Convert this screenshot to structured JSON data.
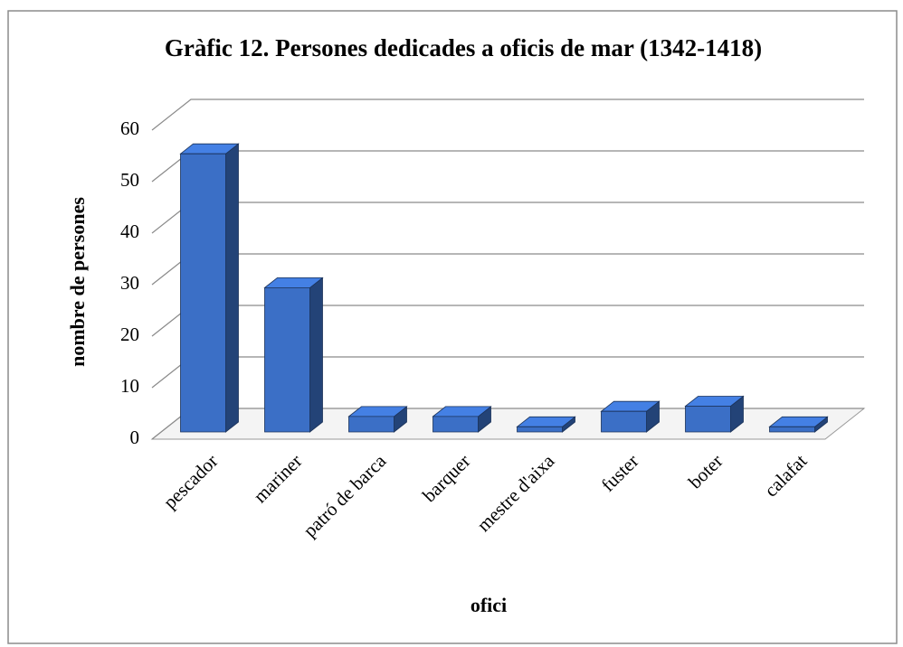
{
  "chart_data": {
    "type": "bar3d",
    "title": "Gràfic 12. Persones dedicades a oficis de mar (1342-1418)",
    "x_label": "ofici",
    "y_label": "nombre de persones",
    "categories": [
      "pescador",
      "mariner",
      "patró de barca",
      "barquer",
      "mestre d'aixa",
      "fuster",
      "boter",
      "calafat"
    ],
    "values": [
      54,
      28,
      3,
      3,
      1,
      4,
      5,
      1
    ],
    "color": "#3b6fc6",
    "ylim": [
      0,
      60
    ],
    "yticks": [
      0,
      10,
      20,
      30,
      40,
      50,
      60
    ],
    "grid": true
  }
}
